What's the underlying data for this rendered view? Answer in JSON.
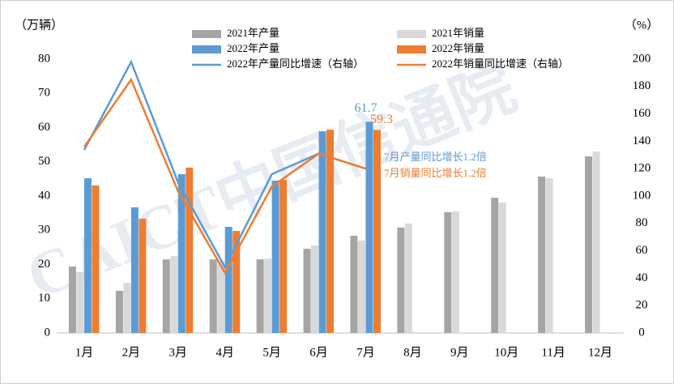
{
  "chart_data": {
    "type": "bar_line",
    "y_label": "（万辆）",
    "y2_label": "（%）",
    "watermark": "CAICT中国信通院",
    "categories": [
      "1月",
      "2月",
      "3月",
      "4月",
      "5月",
      "6月",
      "7月",
      "8月",
      "9月",
      "10月",
      "11月",
      "12月"
    ],
    "series": [
      {
        "name": "2021年产量",
        "type": "bar",
        "color": "#a5a5a5",
        "values": [
          19.4,
          12.3,
          21.5,
          21.5,
          21.5,
          24.6,
          28.4,
          30.8,
          35.3,
          39.5,
          45.7,
          51.6
        ]
      },
      {
        "name": "2021年销量",
        "type": "bar",
        "color": "#d9d9d9",
        "values": [
          17.8,
          14.6,
          22.5,
          21.0,
          21.7,
          25.6,
          27.0,
          32.0,
          35.5,
          38.1,
          45.2,
          53.0
        ]
      },
      {
        "name": "2022年产量",
        "type": "bar",
        "color": "#5b9bd5",
        "values": [
          45.2,
          36.7,
          46.4,
          31.0,
          44.5,
          58.9,
          61.7,
          null,
          null,
          null,
          null,
          null
        ]
      },
      {
        "name": "2022年销量",
        "type": "bar",
        "color": "#ed7d31",
        "values": [
          43.1,
          33.4,
          48.3,
          29.8,
          44.7,
          59.4,
          59.3,
          null,
          null,
          null,
          null,
          null
        ]
      },
      {
        "name": "2022年产量同比增速（右轴）",
        "type": "line",
        "axis": "y2",
        "color": "#5b9bd5",
        "values": [
          133.7,
          198,
          110,
          48,
          116,
          131,
          120,
          null,
          null,
          null,
          null,
          null
        ]
      },
      {
        "name": "2022年销量同比增速（右轴）",
        "type": "line",
        "axis": "y2",
        "color": "#ed7d31",
        "values": [
          136,
          185,
          103.5,
          44,
          107,
          131,
          120,
          null,
          null,
          null,
          null,
          null
        ]
      }
    ],
    "annotations": [
      "7月产量同比增长1.2倍",
      "7月销量同比增长1.2倍"
    ],
    "ylim": [
      0,
      80
    ],
    "yticks": [
      0,
      10,
      20,
      30,
      40,
      50,
      60,
      70,
      80
    ],
    "y2lim": [
      0,
      200
    ],
    "y2ticks": [
      0,
      20,
      40,
      60,
      80,
      100,
      120,
      140,
      160,
      180,
      200
    ]
  }
}
